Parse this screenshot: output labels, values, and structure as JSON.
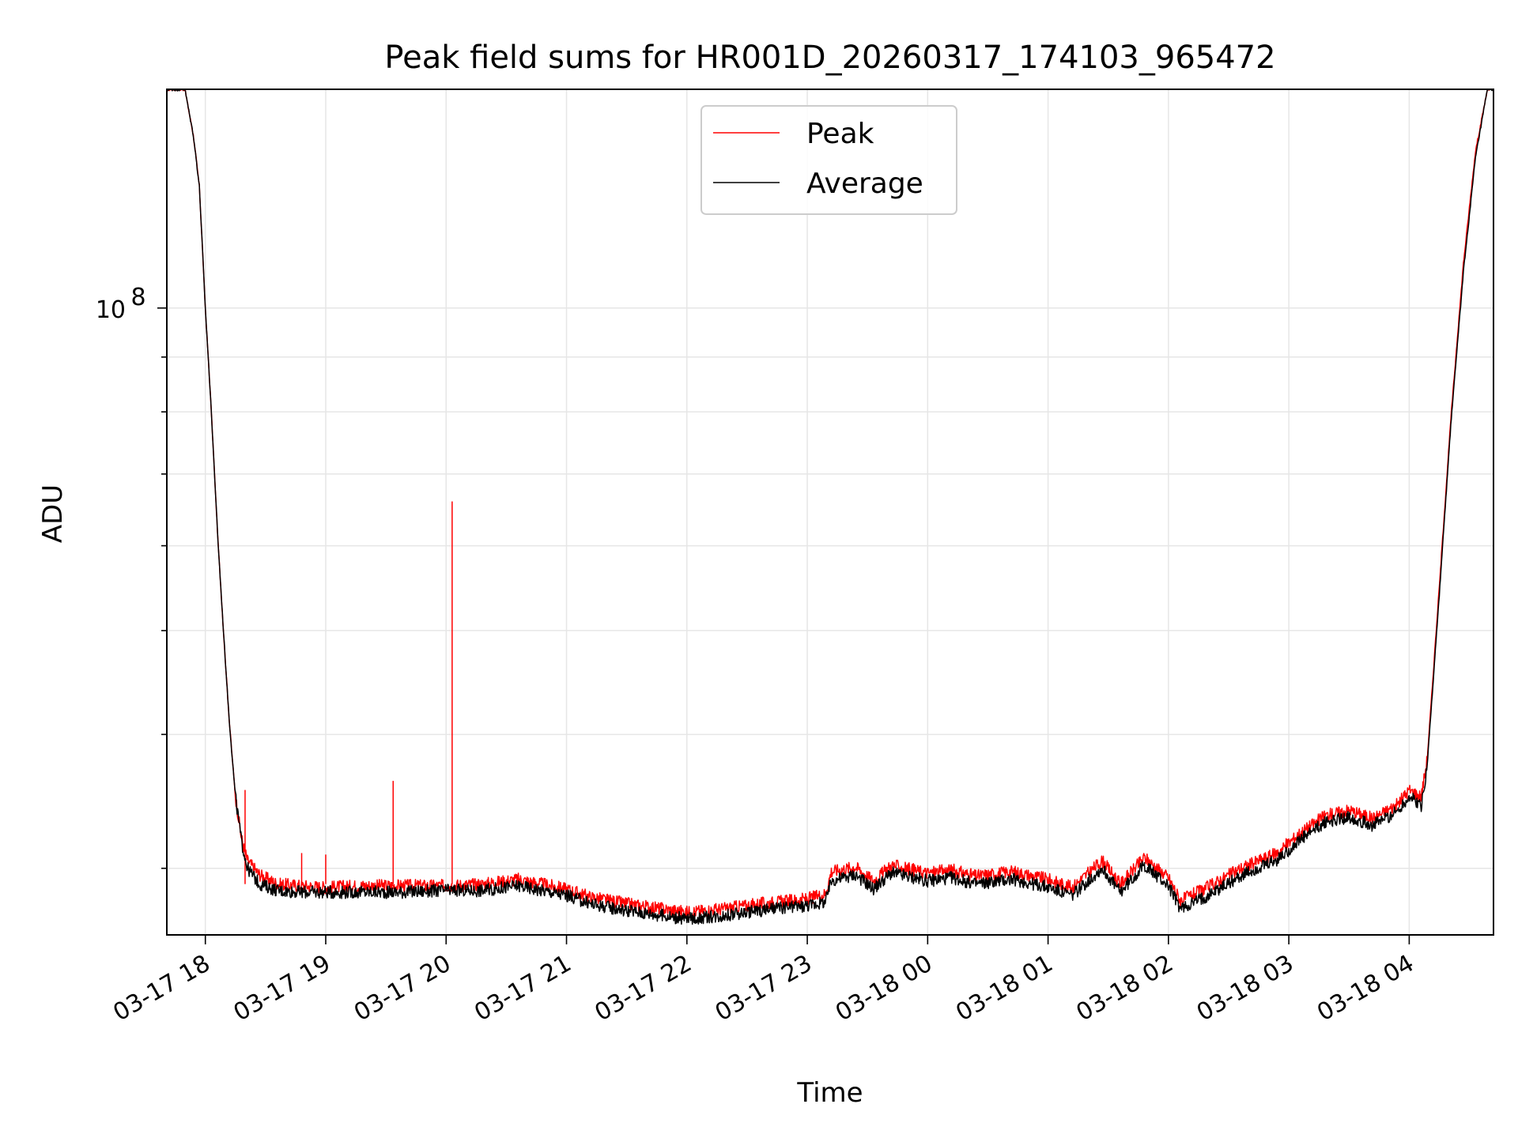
{
  "chart_data": {
    "type": "line",
    "title": "Peak field sums for HR001D_20260317_174103_965472",
    "xlabel": "Time",
    "ylabel": "ADU",
    "y_scale": "log",
    "ylim": [
      26000000,
      160000000
    ],
    "xlim_hours": [
      17.68,
      28.7
    ],
    "grid": true,
    "legend_position": "upper center",
    "x_ticks": [
      {
        "hour": 18,
        "label": "03-17 18"
      },
      {
        "hour": 19,
        "label": "03-17 19"
      },
      {
        "hour": 20,
        "label": "03-17 20"
      },
      {
        "hour": 21,
        "label": "03-17 21"
      },
      {
        "hour": 22,
        "label": "03-17 22"
      },
      {
        "hour": 23,
        "label": "03-17 23"
      },
      {
        "hour": 24,
        "label": "03-18 00"
      },
      {
        "hour": 25,
        "label": "03-18 01"
      },
      {
        "hour": 26,
        "label": "03-18 02"
      },
      {
        "hour": 27,
        "label": "03-18 03"
      },
      {
        "hour": 28,
        "label": "03-18 04"
      }
    ],
    "y_major_tick": {
      "value": 100000000,
      "label_base": "10",
      "label_exp": "8"
    },
    "y_minor_ticks": [
      30000000,
      40000000,
      50000000,
      60000000,
      70000000,
      80000000,
      90000000,
      200000000
    ],
    "series": [
      {
        "name": "Peak",
        "color": "#ff0000",
        "points": [
          [
            17.68,
            160000000
          ],
          [
            17.83,
            160000000
          ],
          [
            17.9,
            145000000
          ],
          [
            17.95,
            130000000
          ],
          [
            18.0,
            100000000
          ],
          [
            18.05,
            80000000
          ],
          [
            18.1,
            62000000
          ],
          [
            18.15,
            50000000
          ],
          [
            18.2,
            41000000
          ],
          [
            18.25,
            35000000
          ],
          [
            18.3,
            32000000
          ],
          [
            18.35,
            30500000
          ],
          [
            18.45,
            29600000
          ],
          [
            18.6,
            29000000
          ],
          [
            18.8,
            28900000
          ],
          [
            19.0,
            28800000
          ],
          [
            19.3,
            28900000
          ],
          [
            19.6,
            28900000
          ],
          [
            20.0,
            28900000
          ],
          [
            20.3,
            29000000
          ],
          [
            20.6,
            29300000
          ],
          [
            20.8,
            29000000
          ],
          [
            21.0,
            28700000
          ],
          [
            21.2,
            28200000
          ],
          [
            21.5,
            27800000
          ],
          [
            21.8,
            27500000
          ],
          [
            22.0,
            27300000
          ],
          [
            22.3,
            27500000
          ],
          [
            22.6,
            27800000
          ],
          [
            23.0,
            28100000
          ],
          [
            23.15,
            28400000
          ],
          [
            23.2,
            29800000
          ],
          [
            23.4,
            30100000
          ],
          [
            23.55,
            29200000
          ],
          [
            23.7,
            30200000
          ],
          [
            24.0,
            29700000
          ],
          [
            24.2,
            29900000
          ],
          [
            24.4,
            29500000
          ],
          [
            24.7,
            29800000
          ],
          [
            25.0,
            29300000
          ],
          [
            25.2,
            28800000
          ],
          [
            25.45,
            30500000
          ],
          [
            25.6,
            29000000
          ],
          [
            25.8,
            30700000
          ],
          [
            26.0,
            29400000
          ],
          [
            26.1,
            28000000
          ],
          [
            26.3,
            28700000
          ],
          [
            26.6,
            30000000
          ],
          [
            26.9,
            31000000
          ],
          [
            27.1,
            32400000
          ],
          [
            27.3,
            33600000
          ],
          [
            27.5,
            34000000
          ],
          [
            27.7,
            33400000
          ],
          [
            27.9,
            34400000
          ],
          [
            28.0,
            35500000
          ],
          [
            28.1,
            35000000
          ],
          [
            28.15,
            38000000
          ],
          [
            28.25,
            55000000
          ],
          [
            28.35,
            80000000
          ],
          [
            28.45,
            110000000
          ],
          [
            28.55,
            140000000
          ],
          [
            28.65,
            160000000
          ],
          [
            28.7,
            160000000
          ]
        ],
        "spikes": [
          [
            18.33,
            35500000
          ],
          [
            18.8,
            31000000
          ],
          [
            19.0,
            30900000
          ],
          [
            19.56,
            36200000
          ],
          [
            20.05,
            66000000
          ]
        ]
      },
      {
        "name": "Average",
        "color": "#000000",
        "points": [
          [
            17.68,
            160000000
          ],
          [
            17.83,
            160000000
          ],
          [
            17.9,
            145000000
          ],
          [
            17.95,
            130000000
          ],
          [
            18.0,
            100000000
          ],
          [
            18.05,
            80000000
          ],
          [
            18.1,
            62000000
          ],
          [
            18.15,
            50000000
          ],
          [
            18.2,
            41000000
          ],
          [
            18.25,
            35000000
          ],
          [
            18.3,
            31800000
          ],
          [
            18.35,
            30000000
          ],
          [
            18.45,
            29000000
          ],
          [
            18.6,
            28600000
          ],
          [
            18.8,
            28500000
          ],
          [
            19.0,
            28500000
          ],
          [
            19.3,
            28500000
          ],
          [
            19.6,
            28500000
          ],
          [
            20.0,
            28600000
          ],
          [
            20.3,
            28600000
          ],
          [
            20.6,
            28900000
          ],
          [
            20.8,
            28600000
          ],
          [
            21.0,
            28300000
          ],
          [
            21.2,
            27800000
          ],
          [
            21.5,
            27400000
          ],
          [
            21.8,
            27100000
          ],
          [
            22.0,
            26900000
          ],
          [
            22.3,
            27100000
          ],
          [
            22.6,
            27400000
          ],
          [
            23.0,
            27700000
          ],
          [
            23.15,
            27900000
          ],
          [
            23.2,
            29200000
          ],
          [
            23.4,
            29600000
          ],
          [
            23.55,
            28700000
          ],
          [
            23.7,
            29700000
          ],
          [
            24.0,
            29200000
          ],
          [
            24.2,
            29400000
          ],
          [
            24.4,
            29000000
          ],
          [
            24.7,
            29300000
          ],
          [
            25.0,
            28800000
          ],
          [
            25.2,
            28300000
          ],
          [
            25.45,
            30000000
          ],
          [
            25.6,
            28500000
          ],
          [
            25.8,
            30200000
          ],
          [
            26.0,
            28900000
          ],
          [
            26.1,
            27500000
          ],
          [
            26.3,
            28200000
          ],
          [
            26.6,
            29500000
          ],
          [
            26.9,
            30500000
          ],
          [
            27.1,
            31900000
          ],
          [
            27.3,
            33100000
          ],
          [
            27.5,
            33500000
          ],
          [
            27.7,
            32900000
          ],
          [
            27.9,
            33900000
          ],
          [
            28.0,
            35000000
          ],
          [
            28.1,
            34300000
          ],
          [
            28.15,
            37500000
          ],
          [
            28.25,
            54000000
          ],
          [
            28.35,
            79000000
          ],
          [
            28.45,
            108000000
          ],
          [
            28.55,
            138000000
          ],
          [
            28.65,
            160000000
          ],
          [
            28.7,
            160000000
          ]
        ],
        "spikes": []
      }
    ]
  }
}
